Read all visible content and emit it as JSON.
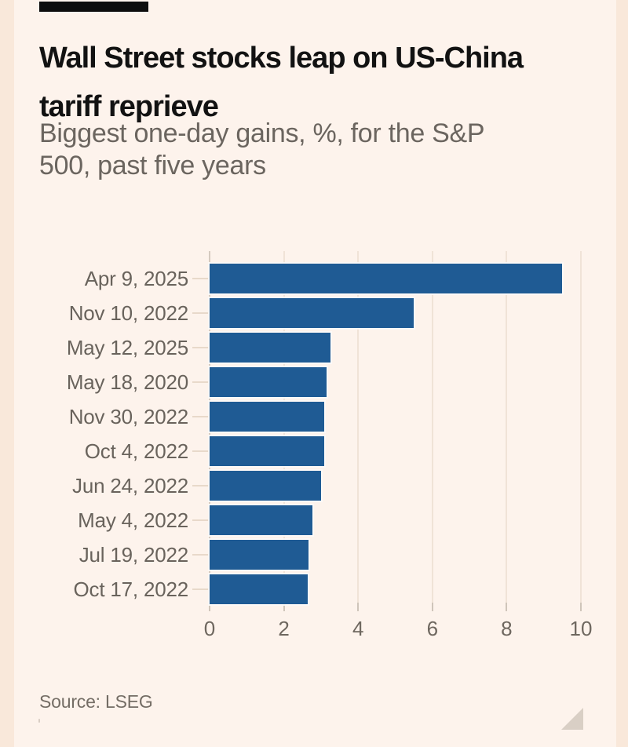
{
  "page": {
    "background_color": "#fdf3ec",
    "edge_strip_color": "#f9e8da"
  },
  "header": {
    "kicker_bar_color": "#0d0d0d",
    "title": "Wall Street stocks leap on US-China\ntariff reprieve",
    "subtitle": "Biggest one-day gains, %, for the S&P\n500, past five years"
  },
  "chart_data": {
    "type": "bar",
    "orientation": "horizontal",
    "title": "Wall Street stocks leap on US-China tariff reprieve",
    "subtitle": "Biggest one-day gains, %, for the S&P 500, past five years",
    "categories": [
      "Apr 9, 2025",
      "Nov 10, 2022",
      "May 12, 2025",
      "May 18, 2020",
      "Nov 30, 2022",
      "Oct 4, 2022",
      "Jun 24, 2022",
      "May 4, 2022",
      "Jul 19, 2022",
      "Oct 17, 2022"
    ],
    "values": [
      9.5,
      5.5,
      3.25,
      3.15,
      3.08,
      3.08,
      3.0,
      2.77,
      2.66,
      2.64
    ],
    "unit": "%",
    "x_ticks": [
      "0",
      "2",
      "4",
      "6",
      "8",
      "10"
    ],
    "xlim": [
      0,
      10.5
    ],
    "grid": "vertical-gridlines-on",
    "legend": "none",
    "bar_color": "#1f5b94",
    "label_color": "#69635c"
  },
  "footer": {
    "source": "Source: LSEG"
  },
  "icons": {
    "resize_handle": "bottom-right-resize-triangle"
  }
}
